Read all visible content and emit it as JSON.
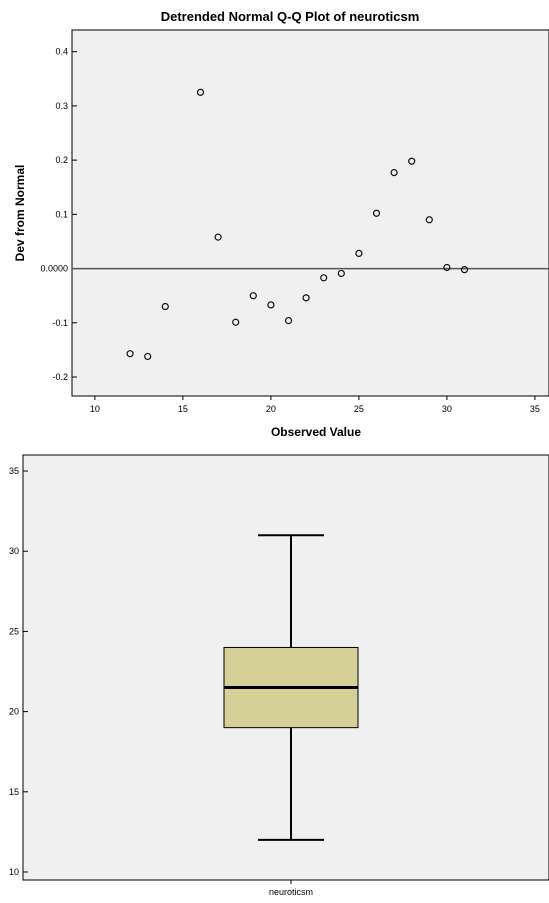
{
  "chart_data": [
    {
      "type": "scatter",
      "title": "Detrended Normal Q-Q Plot of neuroticsm",
      "xlabel": "Observed Value",
      "ylabel": "Dev from Normal",
      "xlim": [
        8.7,
        35.8
      ],
      "ylim": [
        -0.235,
        0.44
      ],
      "xticks": [
        "10",
        "15",
        "20",
        "25",
        "30",
        "35"
      ],
      "yticks": [
        "-0.2",
        "-0.1",
        "0.0000",
        "0.1",
        "0.2",
        "0.3",
        "0.4"
      ],
      "reference_line_y": 0,
      "grid": false,
      "points": [
        {
          "x": 12,
          "y": -0.157
        },
        {
          "x": 13,
          "y": -0.162
        },
        {
          "x": 14,
          "y": -0.07
        },
        {
          "x": 16,
          "y": 0.325
        },
        {
          "x": 17,
          "y": 0.058
        },
        {
          "x": 18,
          "y": -0.099
        },
        {
          "x": 19,
          "y": -0.05
        },
        {
          "x": 20,
          "y": -0.067
        },
        {
          "x": 21,
          "y": -0.096
        },
        {
          "x": 22,
          "y": -0.054
        },
        {
          "x": 23,
          "y": -0.017
        },
        {
          "x": 24,
          "y": -0.009
        },
        {
          "x": 25,
          "y": 0.028
        },
        {
          "x": 26,
          "y": 0.102
        },
        {
          "x": 27,
          "y": 0.177
        },
        {
          "x": 28,
          "y": 0.198
        },
        {
          "x": 29,
          "y": 0.09
        },
        {
          "x": 30,
          "y": 0.002
        },
        {
          "x": 31,
          "y": -0.002
        }
      ]
    },
    {
      "type": "box",
      "category": "neuroticsm",
      "ylim": [
        9.5,
        36
      ],
      "yticks": [
        "10",
        "15",
        "20",
        "25",
        "30",
        "35"
      ],
      "whisker_low": 12,
      "q1": 19,
      "median": 21.5,
      "q3": 24,
      "whisker_high": 31,
      "box_fill": "#d4d098"
    }
  ]
}
